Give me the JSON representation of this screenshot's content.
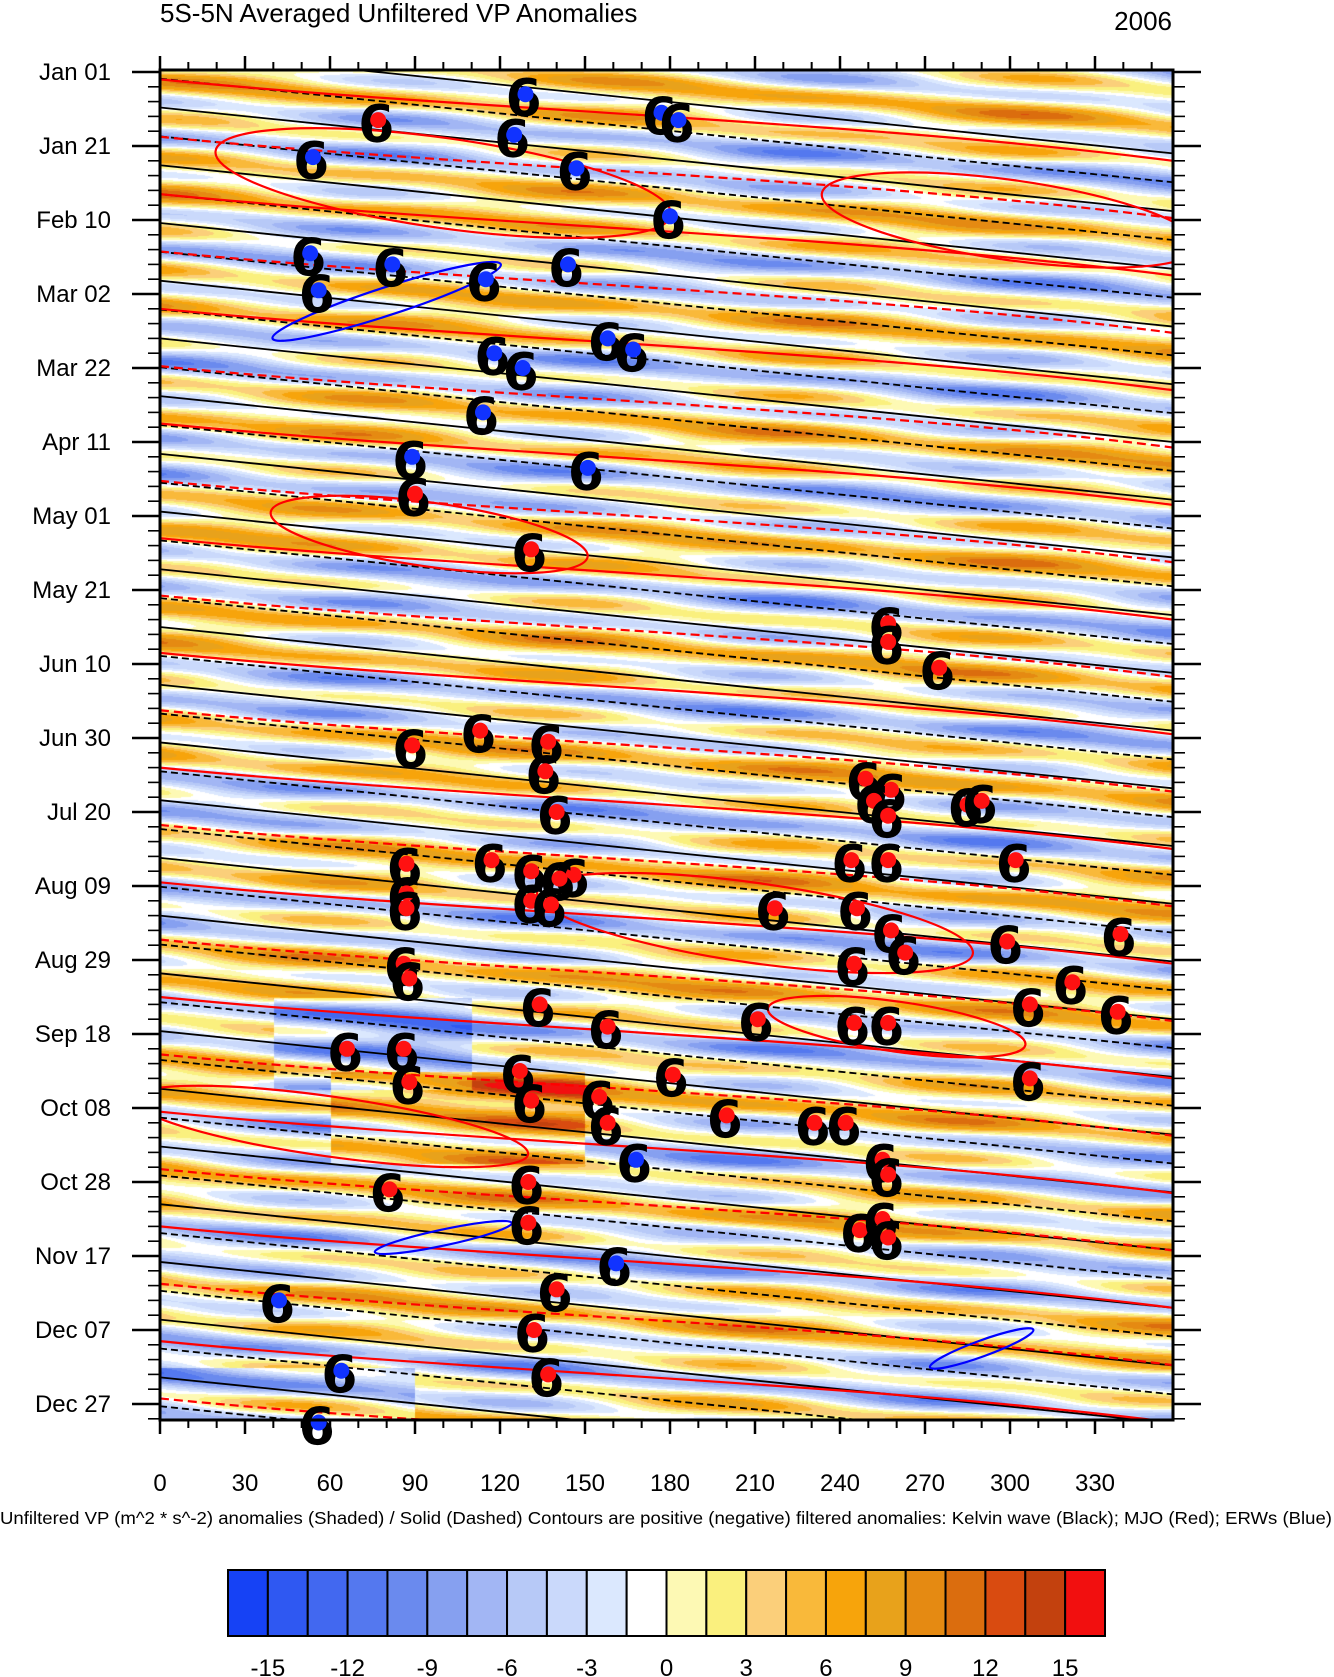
{
  "chart_data": {
    "type": "heatmap",
    "title": "5S-5N Averaged Unfiltered VP Anomalies",
    "year_label": "2006",
    "caption": "Unfiltered VP (m^2 * s^-2) anomalies (Shaded) /  Solid (Dashed) Contours are positive (negative) filtered anomalies: Kelvin wave (Black); MJO (Red); ERWs (Blue)",
    "x_axis": {
      "range": [
        0,
        360
      ],
      "ticks": [
        0,
        30,
        60,
        90,
        120,
        150,
        180,
        210,
        240,
        270,
        300,
        330
      ],
      "tick_labels": [
        "0",
        "30",
        "60",
        "90",
        "120",
        "150",
        "180",
        "210",
        "240",
        "270",
        "300",
        "330"
      ]
    },
    "y_axis": {
      "range": [
        "2006-01-01",
        "2006-12-31"
      ],
      "reversed": true,
      "tick_labels": [
        "Jan 01",
        "Jan 21",
        "Feb 10",
        "Mar 02",
        "Mar 22",
        "Apr 11",
        "May 01",
        "May 21",
        "Jun 10",
        "Jun 30",
        "Jul 20",
        "Aug 09",
        "Aug 29",
        "Sep 18",
        "Oct 08",
        "Oct 28",
        "Nov 17",
        "Dec 07",
        "Dec 27"
      ],
      "tick_days": [
        0,
        20,
        40,
        60,
        80,
        100,
        120,
        140,
        160,
        180,
        200,
        220,
        240,
        260,
        280,
        300,
        320,
        340,
        360
      ]
    },
    "colorbar": {
      "labels": [
        "-15",
        "-12",
        "-9",
        "-6",
        "-3",
        "0",
        "3",
        "6",
        "9",
        "12",
        "15"
      ],
      "label_values": [
        -15,
        -12,
        -9,
        -6,
        -3,
        0,
        3,
        6,
        9,
        12,
        15
      ],
      "boundaries": [
        -15,
        -13.5,
        -12,
        -10.5,
        -9,
        -7.5,
        -6,
        -4.5,
        -3,
        -1.5,
        0,
        1.5,
        3,
        4.5,
        6,
        7.5,
        9,
        10.5,
        12,
        13.5,
        15
      ],
      "colors": [
        "#1642f5",
        "#2f58f2",
        "#4268f0",
        "#5478ef",
        "#6a8aee",
        "#86a0f0",
        "#a2b6f4",
        "#b7c9f7",
        "#cad9fb",
        "#dbe8fe",
        "#ffffff",
        "#fdf9b4",
        "#faf07e",
        "#fbcf7a",
        "#f9b93a",
        "#f7a40b",
        "#e8a21b",
        "#e58a12",
        "#db6d0e",
        "#d94b10",
        "#c3410e",
        "#f20f0f"
      ]
    },
    "legend_notes": {
      "kelvin_color": "#000000",
      "mjo_color": "#ff0000",
      "erw_color": "#0000ff"
    },
    "storm_markers": [
      {
        "lon": 129,
        "day": 6,
        "color": "blue"
      },
      {
        "lon": 77,
        "day": 13,
        "color": "red"
      },
      {
        "lon": 177,
        "day": 11,
        "color": "blue"
      },
      {
        "lon": 183,
        "day": 13,
        "color": "blue"
      },
      {
        "lon": 125,
        "day": 17,
        "color": "blue"
      },
      {
        "lon": 54,
        "day": 23,
        "color": "blue"
      },
      {
        "lon": 147,
        "day": 26,
        "color": "blue"
      },
      {
        "lon": 180,
        "day": 39,
        "color": "blue"
      },
      {
        "lon": 53,
        "day": 49,
        "color": "blue"
      },
      {
        "lon": 82,
        "day": 52,
        "color": "blue"
      },
      {
        "lon": 115,
        "day": 56,
        "color": "blue"
      },
      {
        "lon": 144,
        "day": 52,
        "color": "blue"
      },
      {
        "lon": 56,
        "day": 59,
        "color": "blue"
      },
      {
        "lon": 158,
        "day": 72,
        "color": "blue"
      },
      {
        "lon": 167,
        "day": 75,
        "color": "blue"
      },
      {
        "lon": 118,
        "day": 76,
        "color": "blue"
      },
      {
        "lon": 128,
        "day": 80,
        "color": "blue"
      },
      {
        "lon": 114,
        "day": 92,
        "color": "blue"
      },
      {
        "lon": 89,
        "day": 104,
        "color": "blue"
      },
      {
        "lon": 151,
        "day": 107,
        "color": "blue"
      },
      {
        "lon": 90,
        "day": 114,
        "color": "red"
      },
      {
        "lon": 131,
        "day": 129,
        "color": "red"
      },
      {
        "lon": 257,
        "day": 149,
        "color": "red"
      },
      {
        "lon": 257,
        "day": 154,
        "color": "red"
      },
      {
        "lon": 275,
        "day": 161,
        "color": "red"
      },
      {
        "lon": 113,
        "day": 178,
        "color": "red"
      },
      {
        "lon": 89,
        "day": 182,
        "color": "red"
      },
      {
        "lon": 137,
        "day": 181,
        "color": "red"
      },
      {
        "lon": 136,
        "day": 189,
        "color": "red"
      },
      {
        "lon": 249,
        "day": 191,
        "color": "red"
      },
      {
        "lon": 258,
        "day": 194,
        "color": "red"
      },
      {
        "lon": 252,
        "day": 197,
        "color": "red"
      },
      {
        "lon": 140,
        "day": 200,
        "color": "red"
      },
      {
        "lon": 285,
        "day": 198,
        "color": "red"
      },
      {
        "lon": 290,
        "day": 197,
        "color": "red"
      },
      {
        "lon": 257,
        "day": 201,
        "color": "red"
      },
      {
        "lon": 87,
        "day": 214,
        "color": "red"
      },
      {
        "lon": 117,
        "day": 213,
        "color": "red"
      },
      {
        "lon": 131,
        "day": 216,
        "color": "red"
      },
      {
        "lon": 146,
        "day": 217,
        "color": "red"
      },
      {
        "lon": 141,
        "day": 218,
        "color": "red"
      },
      {
        "lon": 244,
        "day": 213,
        "color": "red"
      },
      {
        "lon": 257,
        "day": 213,
        "color": "red"
      },
      {
        "lon": 302,
        "day": 213,
        "color": "red"
      },
      {
        "lon": 87,
        "day": 222,
        "color": "red"
      },
      {
        "lon": 87,
        "day": 226,
        "color": "red"
      },
      {
        "lon": 131,
        "day": 224,
        "color": "red"
      },
      {
        "lon": 138,
        "day": 225,
        "color": "red"
      },
      {
        "lon": 217,
        "day": 226,
        "color": "red"
      },
      {
        "lon": 246,
        "day": 226,
        "color": "red"
      },
      {
        "lon": 258,
        "day": 232,
        "color": "red"
      },
      {
        "lon": 263,
        "day": 238,
        "color": "red"
      },
      {
        "lon": 299,
        "day": 235,
        "color": "red"
      },
      {
        "lon": 339,
        "day": 233,
        "color": "red"
      },
      {
        "lon": 86,
        "day": 241,
        "color": "red"
      },
      {
        "lon": 88,
        "day": 245,
        "color": "red"
      },
      {
        "lon": 245,
        "day": 241,
        "color": "red"
      },
      {
        "lon": 322,
        "day": 246,
        "color": "red"
      },
      {
        "lon": 134,
        "day": 252,
        "color": "red"
      },
      {
        "lon": 158,
        "day": 258,
        "color": "red"
      },
      {
        "lon": 211,
        "day": 256,
        "color": "red"
      },
      {
        "lon": 245,
        "day": 257,
        "color": "red"
      },
      {
        "lon": 257,
        "day": 257,
        "color": "red"
      },
      {
        "lon": 307,
        "day": 252,
        "color": "red"
      },
      {
        "lon": 338,
        "day": 254,
        "color": "red"
      },
      {
        "lon": 66,
        "day": 264,
        "color": "red"
      },
      {
        "lon": 86,
        "day": 264,
        "color": "red"
      },
      {
        "lon": 88,
        "day": 273,
        "color": "red"
      },
      {
        "lon": 127,
        "day": 270,
        "color": "red"
      },
      {
        "lon": 131,
        "day": 278,
        "color": "red"
      },
      {
        "lon": 155,
        "day": 277,
        "color": "red"
      },
      {
        "lon": 158,
        "day": 284,
        "color": "red"
      },
      {
        "lon": 181,
        "day": 271,
        "color": "red"
      },
      {
        "lon": 200,
        "day": 282,
        "color": "red"
      },
      {
        "lon": 231,
        "day": 284,
        "color": "red"
      },
      {
        "lon": 242,
        "day": 284,
        "color": "red"
      },
      {
        "lon": 307,
        "day": 272,
        "color": "red"
      },
      {
        "lon": 168,
        "day": 294,
        "color": "blue"
      },
      {
        "lon": 255,
        "day": 294,
        "color": "red"
      },
      {
        "lon": 257,
        "day": 298,
        "color": "red"
      },
      {
        "lon": 81,
        "day": 302,
        "color": "red"
      },
      {
        "lon": 130,
        "day": 300,
        "color": "red"
      },
      {
        "lon": 130,
        "day": 311,
        "color": "red"
      },
      {
        "lon": 247,
        "day": 313,
        "color": "red"
      },
      {
        "lon": 255,
        "day": 310,
        "color": "red"
      },
      {
        "lon": 257,
        "day": 315,
        "color": "red"
      },
      {
        "lon": 161,
        "day": 322,
        "color": "blue"
      },
      {
        "lon": 140,
        "day": 329,
        "color": "red"
      },
      {
        "lon": 42,
        "day": 332,
        "color": "blue"
      },
      {
        "lon": 132,
        "day": 340,
        "color": "red"
      },
      {
        "lon": 137,
        "day": 352,
        "color": "red"
      },
      {
        "lon": 64,
        "day": 351,
        "color": "blue"
      },
      {
        "lon": 56,
        "day": 365,
        "color": "blue"
      }
    ]
  }
}
